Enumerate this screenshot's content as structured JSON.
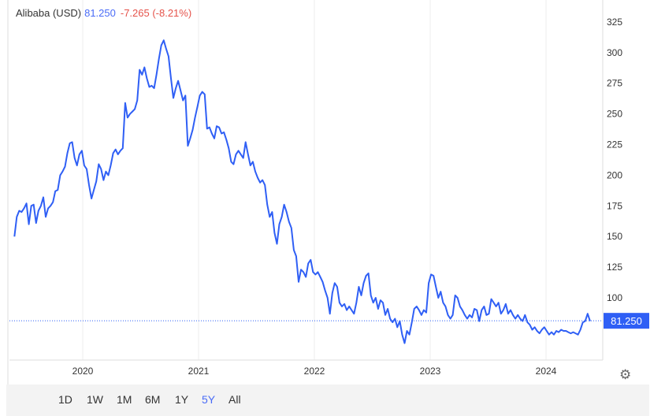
{
  "header": {
    "name": "Alibaba (USD)",
    "price": "81.250",
    "change": "-7.265 (-8.21%)"
  },
  "ranges": [
    {
      "label": "1D"
    },
    {
      "label": "1W"
    },
    {
      "label": "1M"
    },
    {
      "label": "6M"
    },
    {
      "label": "1Y"
    },
    {
      "label": "5Y",
      "active": true
    },
    {
      "label": "All"
    }
  ],
  "colors": {
    "line": "#2f5ff5",
    "accent": "#4a6cf7",
    "negative": "#e5534b"
  },
  "chart_data": {
    "type": "line",
    "title": "Alibaba (USD)",
    "series": [
      {
        "name": "Alibaba (USD)",
        "start_year": 2019.41,
        "end_year": 2024.38,
        "values": [
          150,
          166,
          171,
          170,
          173,
          177,
          160,
          175,
          176,
          161,
          171,
          175,
          182,
          166,
          173,
          175,
          178,
          187,
          188,
          200,
          203,
          207,
          218,
          226,
          227,
          214,
          208,
          217,
          220,
          208,
          205,
          192,
          181,
          188,
          195,
          209,
          205,
          196,
          203,
          200,
          208,
          218,
          221,
          217,
          220,
          222,
          259,
          247,
          250,
          252,
          254,
          261,
          286,
          282,
          288,
          279,
          272,
          273,
          271,
          282,
          295,
          306,
          310,
          303,
          297,
          279,
          263,
          271,
          277,
          269,
          261,
          265,
          224,
          230,
          237,
          247,
          256,
          265,
          268,
          266,
          238,
          239,
          234,
          230,
          240,
          239,
          234,
          235,
          229,
          222,
          211,
          209,
          217,
          220,
          217,
          214,
          227,
          217,
          208,
          211,
          203,
          198,
          194,
          196,
          192,
          176,
          166,
          170,
          153,
          144,
          160,
          166,
          176,
          170,
          162,
          157,
          139,
          134,
          113,
          123,
          121,
          117,
          128,
          131,
          121,
          119,
          121,
          117,
          113,
          106,
          100,
          87,
          104,
          112,
          109,
          96,
          93,
          95,
          90,
          93,
          90,
          87,
          96,
          109,
          102,
          112,
          118,
          120,
          102,
          96,
          100,
          91,
          98,
          96,
          86,
          91,
          83,
          80,
          83,
          76,
          81,
          70,
          63,
          73,
          70,
          80,
          91,
          93,
          90,
          86,
          90,
          88,
          112,
          119,
          118,
          109,
          100,
          105,
          96,
          93,
          86,
          83,
          86,
          102,
          100,
          93,
          90,
          86,
          83,
          86,
          84,
          91,
          90,
          81,
          90,
          93,
          86,
          87,
          99,
          96,
          93,
          96,
          87,
          90,
          95,
          87,
          90,
          86,
          83,
          86,
          83,
          81,
          86,
          80,
          78,
          74,
          76,
          73,
          71,
          74,
          76,
          73,
          70,
          72,
          70,
          73,
          72,
          74,
          73,
          73,
          72,
          71,
          72,
          71,
          70,
          74,
          80,
          81,
          87,
          81
        ]
      }
    ],
    "last_value": "81.250",
    "x_ticks": [
      "2020",
      "2021",
      "2022",
      "2023",
      "2024"
    ],
    "x_tick_values": [
      2020,
      2021,
      2022,
      2023,
      2024
    ],
    "y_ticks": [
      "100",
      "125",
      "150",
      "175",
      "200",
      "225",
      "250",
      "275",
      "300",
      "325"
    ],
    "y_tick_values": [
      100,
      125,
      150,
      175,
      200,
      225,
      250,
      275,
      300,
      325
    ],
    "ylim": [
      45,
      335
    ],
    "grid": true
  }
}
